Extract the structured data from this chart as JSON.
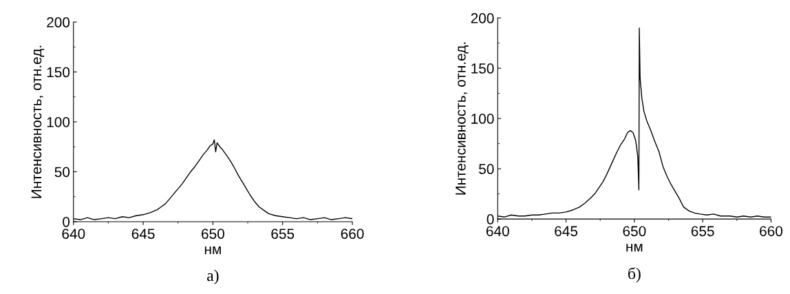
{
  "chart_data": [
    {
      "type": "line",
      "xlabel": "нм",
      "ylabel": "Интенсивность, отн.ед.",
      "annotations": [
        "а)"
      ],
      "color": "#000000",
      "xlim": [
        640,
        660
      ],
      "ylim": [
        0,
        200
      ],
      "xticks": [
        640,
        645,
        650,
        655,
        660
      ],
      "yticks": [
        0,
        50,
        100,
        150,
        200
      ],
      "x": [
        640,
        640.5,
        641,
        641.5,
        642,
        642.5,
        643,
        643.5,
        644,
        644.5,
        645,
        645.5,
        646,
        646.3,
        646.6,
        646.9,
        647.2,
        647.5,
        647.8,
        648.1,
        648.4,
        648.7,
        649,
        649.3,
        649.6,
        649.8,
        650,
        650.1,
        650.2,
        650.3,
        650.5,
        650.7,
        650.9,
        651.2,
        651.5,
        651.8,
        652.1,
        652.4,
        652.7,
        653,
        653.3,
        653.6,
        654,
        654.5,
        655,
        655.5,
        656,
        656.5,
        657,
        657.5,
        658,
        658.5,
        659,
        659.5,
        660
      ],
      "values": [
        3,
        2,
        4,
        2,
        3,
        4,
        3,
        5,
        4,
        6,
        7,
        9,
        12,
        15,
        18,
        23,
        28,
        33,
        38,
        44,
        50,
        55,
        61,
        67,
        72,
        76,
        78,
        82,
        70,
        79,
        75,
        72,
        68,
        62,
        55,
        47,
        40,
        33,
        26,
        20,
        15,
        12,
        8,
        6,
        5,
        4,
        3,
        4,
        2,
        3,
        4,
        2,
        3,
        4,
        3
      ]
    },
    {
      "type": "line",
      "xlabel": "нм",
      "ylabel": "Интенсивность, отн.ед.",
      "annotations": [
        "б)"
      ],
      "color": "#000000",
      "xlim": [
        640,
        660
      ],
      "ylim": [
        0,
        200
      ],
      "xticks": [
        640,
        645,
        650,
        655,
        660
      ],
      "yticks": [
        0,
        50,
        100,
        150,
        200
      ],
      "x": [
        640,
        640.5,
        641,
        641.5,
        642,
        642.5,
        643,
        643.5,
        644,
        644.5,
        645,
        645.5,
        646,
        646.4,
        646.8,
        647.1,
        647.4,
        647.7,
        648,
        648.4,
        648.7,
        649,
        649.3,
        649.5,
        649.7,
        649.9,
        650.1,
        650.25,
        650.33,
        650.36,
        650.42,
        650.55,
        650.7,
        650.9,
        651.2,
        651.5,
        651.8,
        652.1,
        652.4,
        652.7,
        653,
        653.3,
        653.6,
        654,
        654.4,
        654.8,
        655.3,
        655.8,
        656.3,
        657,
        657.5,
        658,
        658.5,
        659,
        659.5,
        660
      ],
      "values": [
        3,
        2,
        4,
        3,
        3,
        4,
        4,
        5,
        6,
        6,
        7,
        9,
        12,
        16,
        21,
        25,
        31,
        37,
        45,
        57,
        66,
        74,
        80,
        86,
        88,
        86,
        78,
        62,
        29,
        190,
        140,
        120,
        107,
        98,
        88,
        77,
        67,
        52,
        42,
        34,
        27,
        20,
        12,
        8,
        6,
        5,
        4,
        5,
        3,
        3,
        2,
        3,
        2,
        3,
        2,
        2
      ]
    }
  ]
}
